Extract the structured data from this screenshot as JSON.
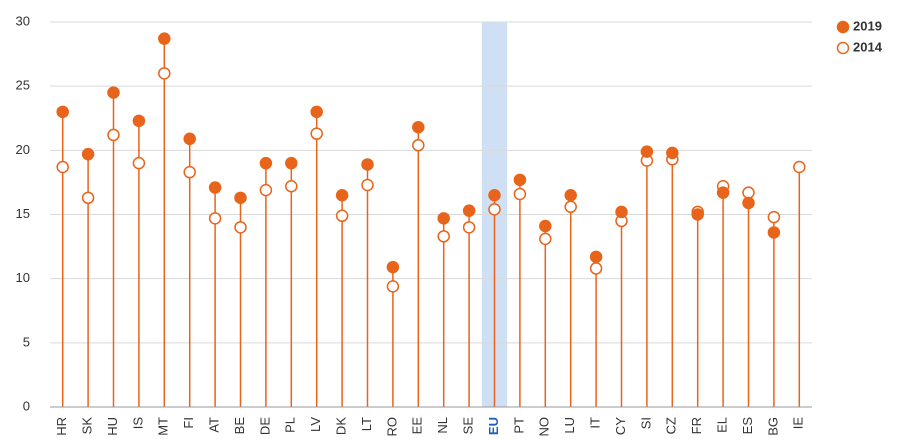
{
  "chart_data": {
    "type": "lollipop",
    "categories": [
      "HR",
      "SK",
      "HU",
      "IS",
      "MT",
      "FI",
      "AT",
      "BE",
      "DE",
      "PL",
      "LV",
      "DK",
      "LT",
      "RO",
      "EE",
      "NL",
      "SE",
      "EU",
      "PT",
      "NO",
      "LU",
      "IT",
      "CY",
      "SI",
      "CZ",
      "FR",
      "EL",
      "ES",
      "BG",
      "IE"
    ],
    "series": [
      {
        "name": "2019",
        "color": "#e8641b",
        "filled": true,
        "values": [
          23.0,
          19.7,
          24.5,
          22.3,
          28.7,
          20.9,
          17.1,
          16.3,
          19.0,
          19.0,
          23.0,
          16.5,
          18.9,
          10.9,
          21.8,
          14.7,
          15.3,
          16.5,
          17.7,
          14.1,
          16.5,
          11.7,
          15.2,
          19.9,
          19.8,
          15.0,
          16.7,
          15.9,
          13.6,
          null
        ]
      },
      {
        "name": "2014",
        "color": "#e8641b",
        "filled": false,
        "values": [
          18.7,
          16.3,
          21.2,
          19.0,
          26.0,
          18.3,
          14.7,
          14.0,
          16.9,
          17.2,
          21.3,
          14.9,
          17.3,
          9.4,
          20.4,
          13.3,
          14.0,
          15.4,
          16.6,
          13.1,
          15.6,
          10.8,
          14.5,
          19.2,
          19.3,
          15.2,
          17.2,
          16.7,
          14.8,
          18.7
        ]
      }
    ],
    "highlight": "EU",
    "highlight_color": "#cfe0f5",
    "ylim": [
      0,
      30
    ],
    "yticks": [
      0,
      5,
      10,
      15,
      20,
      25,
      30
    ],
    "grid": true,
    "legend": "top-right"
  }
}
